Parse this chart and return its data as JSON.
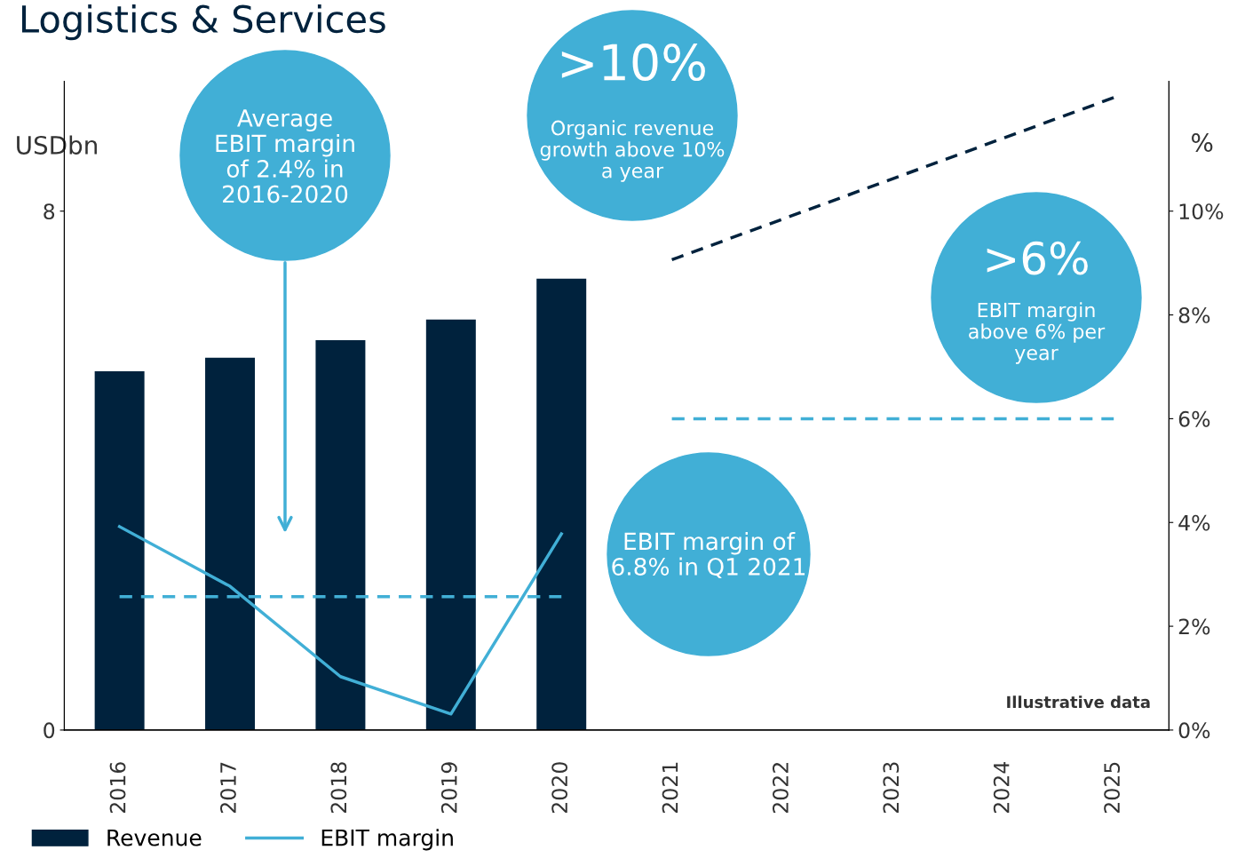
{
  "chart_data": {
    "type": "bar",
    "title": "Logistics & Services",
    "ylabel": "USDbn",
    "y2label": "%",
    "categories": [
      "2016",
      "2017",
      "2018",
      "2019",
      "2020",
      "2021",
      "2022",
      "2023",
      "2024",
      "2025"
    ],
    "series": [
      {
        "name": "Revenue",
        "color": "#00223d",
        "values": [
          5.53,
          5.74,
          6.01,
          6.33,
          6.96,
          null,
          null,
          null,
          null,
          null
        ]
      },
      {
        "name": "EBIT margin",
        "type": "line",
        "axis": "y2",
        "color": "#41afd6",
        "values": [
          3.92,
          2.77,
          1.03,
          0.31,
          3.78,
          null,
          null,
          null,
          null,
          null
        ]
      },
      {
        "type": "line",
        "axis": "y2",
        "color": "#41afd6",
        "line_style": "dashed",
        "values": [
          2.57,
          2.57,
          2.57,
          2.57,
          2.57,
          null,
          null,
          null,
          null,
          null
        ]
      },
      {
        "type": "line",
        "axis": "y2",
        "color": "#41afd6",
        "line_style": "dashed",
        "values": [
          null,
          null,
          null,
          null,
          null,
          6,
          6,
          6,
          6,
          6
        ]
      },
      {
        "type": "line",
        "color": "#00223d",
        "line_style": "dashed",
        "values": [
          null,
          null,
          null,
          null,
          null,
          7.25,
          null,
          null,
          null,
          9.75
        ]
      }
    ],
    "ylim": [
      0,
      10
    ],
    "yticks": [
      0,
      8
    ],
    "y2lim": [
      0,
      12.5
    ],
    "y2ticks": [
      {
        "value": 0,
        "label": "0%"
      },
      {
        "value": 2,
        "label": "2%"
      },
      {
        "value": 4,
        "label": "4%"
      },
      {
        "value": 6,
        "label": "6%"
      },
      {
        "value": 8,
        "label": "8%"
      },
      {
        "value": 10,
        "label": "10%"
      }
    ],
    "annotations": [
      "Average EBIT margin of 2.4% in 2016-2020",
      ">10%",
      "Organic revenue growth above 10% a year",
      ">6%",
      "EBIT margin above 6% per year",
      "EBIT margin of 6.8% in Q1 2021",
      "Illustrative data"
    ],
    "legend": "bottom left",
    "grid": false
  }
}
